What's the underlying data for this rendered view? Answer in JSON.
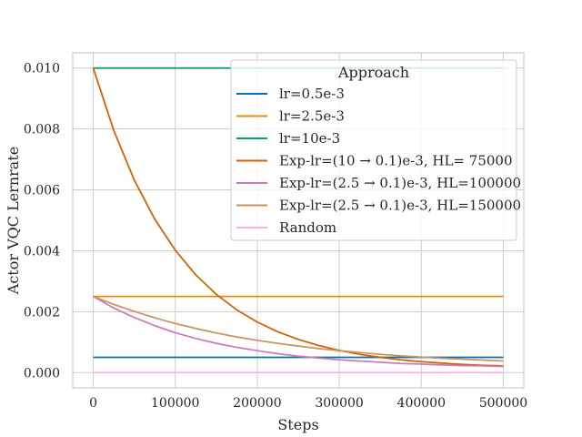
{
  "chart_data": {
    "type": "line",
    "title": "",
    "xlabel": "Steps",
    "ylabel": "Actor VQC Lernrate",
    "xlim": [
      -25000,
      525000
    ],
    "ylim": [
      -0.0005,
      0.0105
    ],
    "xticks": [
      0,
      100000,
      200000,
      300000,
      400000,
      500000
    ],
    "xtick_labels": [
      "0",
      "100000",
      "200000",
      "300000",
      "400000",
      "500000"
    ],
    "yticks": [
      0.0,
      0.002,
      0.004,
      0.006,
      0.008,
      0.01
    ],
    "ytick_labels": [
      "0.000",
      "0.002",
      "0.004",
      "0.006",
      "0.008",
      "0.010"
    ],
    "grid": true,
    "legend": {
      "title": "Approach",
      "placement": "top-right"
    },
    "x": [
      0,
      25000,
      50000,
      75000,
      100000,
      125000,
      150000,
      175000,
      200000,
      225000,
      250000,
      275000,
      300000,
      325000,
      350000,
      375000,
      400000,
      425000,
      450000,
      475000,
      500000
    ],
    "series": [
      {
        "name": "lr=0.5e-3",
        "color": "#0173b2",
        "values": [
          0.0005,
          0.0005,
          0.0005,
          0.0005,
          0.0005,
          0.0005,
          0.0005,
          0.0005,
          0.0005,
          0.0005,
          0.0005,
          0.0005,
          0.0005,
          0.0005,
          0.0005,
          0.0005,
          0.0005,
          0.0005,
          0.0005,
          0.0005,
          0.0005
        ]
      },
      {
        "name": "lr=2.5e-3",
        "color": "#de8f05",
        "values": [
          0.0025,
          0.0025,
          0.0025,
          0.0025,
          0.0025,
          0.0025,
          0.0025,
          0.0025,
          0.0025,
          0.0025,
          0.0025,
          0.0025,
          0.0025,
          0.0025,
          0.0025,
          0.0025,
          0.0025,
          0.0025,
          0.0025,
          0.0025,
          0.0025
        ]
      },
      {
        "name": "lr=10e-3",
        "color": "#029e73",
        "values": [
          0.01,
          0.01,
          0.01,
          0.01,
          0.01,
          0.01,
          0.01,
          0.01,
          0.01,
          0.01,
          0.01,
          0.01,
          0.01,
          0.01,
          0.01,
          0.01,
          0.01,
          0.01,
          0.01,
          0.01,
          0.01
        ]
      },
      {
        "name": "Exp-lr=(10 → 0.1)e-3, HL= 75000",
        "color": "#d55e00",
        "values": [
          0.01,
          0.00795,
          0.00632,
          0.00504,
          0.00402,
          0.00321,
          0.00257,
          0.00206,
          0.00166,
          0.00134,
          0.00109,
          0.00089,
          0.00073,
          0.0006,
          0.0005,
          0.00042,
          0.00036,
          0.00031,
          0.00027,
          0.00024,
          0.00022
        ]
      },
      {
        "name": "Exp-lr=(2.5 → 0.1)e-3, HL=100000",
        "color": "#cc78bc",
        "values": [
          0.0025,
          0.00212,
          0.00181,
          0.00154,
          0.00131,
          0.00112,
          0.00096,
          0.00083,
          0.00072,
          0.00062,
          0.00054,
          0.00048,
          0.00042,
          0.00038,
          0.00034,
          0.0003,
          0.00028,
          0.00025,
          0.00023,
          0.00022,
          0.0002
        ]
      },
      {
        "name": "Exp-lr=(2.5 → 0.1)e-3, HL=150000",
        "color": "#ca9161",
        "values": [
          0.0025,
          0.00224,
          0.00201,
          0.0018,
          0.00161,
          0.00145,
          0.0013,
          0.00117,
          0.00106,
          0.00096,
          0.00087,
          0.00079,
          0.00072,
          0.00066,
          0.0006,
          0.00055,
          0.00051,
          0.00047,
          0.00044,
          0.00041,
          0.00038
        ]
      },
      {
        "name": "Random",
        "color": "#fbafe4",
        "values": [
          0.0,
          0.0,
          0.0,
          0.0,
          0.0,
          0.0,
          0.0,
          0.0,
          0.0,
          0.0,
          0.0,
          0.0,
          0.0,
          0.0,
          0.0,
          0.0,
          0.0,
          0.0,
          0.0,
          0.0,
          0.0
        ]
      }
    ]
  }
}
